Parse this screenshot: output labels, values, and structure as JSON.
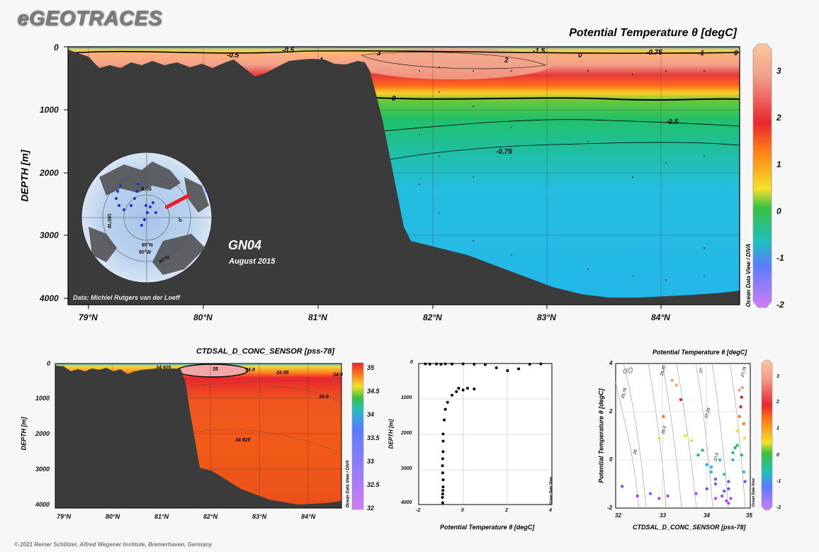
{
  "header": {
    "logo": "eGEOTRACES",
    "main_title": "Potential Temperature θ [degC]"
  },
  "main_section": {
    "ylabel": "DEPTH [m]",
    "yticks": [
      "0",
      "1000",
      "2000",
      "3000",
      "4000"
    ],
    "xticks": [
      "79°N",
      "80°N",
      "81°N",
      "82°N",
      "83°N",
      "84°N"
    ],
    "cruise": "GN04",
    "date": "August 2015",
    "credit": "Data: Michiel Rutgers van der Loeff",
    "dv_label": "Ocean Data View / DIVA",
    "colorbar_ticks": [
      "3",
      "2",
      "1",
      "0",
      "-1",
      "-2"
    ],
    "contour_labels": [
      "0",
      "-0.5",
      "-0.75",
      "1",
      "2",
      "3",
      "-1.5",
      "-0.75",
      "-1",
      "-0.5",
      "-0.5",
      "0",
      "0"
    ],
    "map_labels": [
      "90°E",
      "180°W",
      "0°",
      "85°N",
      "80°N",
      "90°W"
    ]
  },
  "salinity_section": {
    "title": "CTDSAL_D_CONC_SENSOR [pss-78]",
    "ylabel": "DEPTH [m]",
    "yticks": [
      "0",
      "1000",
      "2000",
      "3000",
      "4000"
    ],
    "xticks": [
      "79°N",
      "80°N",
      "81°N",
      "82°N",
      "83°N",
      "84°N"
    ],
    "colorbar_ticks": [
      "35",
      "34.5",
      "34",
      "33.5",
      "33",
      "32.5",
      "32"
    ],
    "contour_labels": [
      "34.925",
      "35",
      "34.9",
      "34.95",
      "34.9",
      "34.9",
      "34.925"
    ],
    "dv_label": "Ocean Data View / DIVA"
  },
  "profile": {
    "xlabel": "Potential Temperature θ [degC]",
    "ylabel": "DEPTH [m]",
    "xticks": [
      "-2",
      "0",
      "2",
      "4"
    ],
    "yticks": [
      "0",
      "1000",
      "2000",
      "3000",
      "4000"
    ],
    "dv_label": "Ocean Data View"
  },
  "ts_plot": {
    "title": "Potential Temperature θ [degC]",
    "xlabel": "CTDSAL_D_CONC_SENSOR [pss-78]",
    "ylabel": "Potential Temperature θ [degC]",
    "xticks": [
      "32",
      "33",
      "34",
      "35"
    ],
    "yticks": [
      "4",
      "2",
      "0",
      "-2"
    ],
    "sigma_label": "σ0",
    "isopycnal_labels": [
      "25.75",
      "26",
      "26.25",
      "26.5",
      "27",
      "27.25",
      "27.5",
      "27.75"
    ],
    "colorbar_ticks": [
      "3",
      "2",
      "1",
      "0",
      "-1",
      "-2"
    ],
    "dv_label": "Ocean Data View"
  },
  "footer": "© 2021 Reiner Schlitzer, Alfred Wegener Institute, Bremerhaven, Germany",
  "chart_data": [
    {
      "type": "heatmap",
      "title": "Potential Temperature θ [degC]",
      "xlabel": "",
      "ylabel": "DEPTH [m]",
      "xlim": [
        78.8,
        84.7
      ],
      "ylim": [
        4000,
        0
      ],
      "colorbar_range": [
        -2,
        3.5
      ],
      "water_column_profile": {
        "depth": [
          0,
          100,
          300,
          500,
          800,
          1000,
          1500,
          2000,
          3000,
          4000
        ],
        "temperature": [
          -1.5,
          1.5,
          2.5,
          1.5,
          0.5,
          0.0,
          -0.5,
          -0.7,
          -0.85,
          -0.9
        ]
      }
    },
    {
      "type": "heatmap",
      "title": "CTDSAL_D_CONC_SENSOR [pss-78]",
      "xlabel": "",
      "ylabel": "DEPTH [m]",
      "xlim": [
        78.8,
        84.7
      ],
      "ylim": [
        4000,
        0
      ],
      "colorbar_range": [
        32,
        35
      ],
      "water_column_profile": {
        "depth": [
          0,
          50,
          200,
          500,
          1000,
          2000,
          3000,
          4000
        ],
        "salinity": [
          32.5,
          34.2,
          34.95,
          34.92,
          34.91,
          34.92,
          34.93,
          34.93
        ]
      }
    },
    {
      "type": "scatter",
      "title": "",
      "xlabel": "Potential Temperature θ [degC]",
      "ylabel": "DEPTH [m]",
      "xlim": [
        -2,
        4
      ],
      "ylim": [
        4000,
        0
      ],
      "x": [
        -1.7,
        -1.5,
        -1.2,
        -1.0,
        -0.8,
        -0.5,
        0.0,
        0.5,
        1.0,
        1.5,
        2.0,
        2.5,
        3.0,
        3.5,
        -0.2,
        0.0,
        0.2,
        0.5,
        -0.3,
        -0.5,
        -0.7,
        -0.8,
        -0.85,
        -0.9,
        -0.9,
        -0.9,
        -0.92,
        -0.93,
        -0.92,
        -0.9,
        -0.9,
        -0.91,
        -0.92,
        -0.93,
        -0.92
      ],
      "y": [
        10,
        15,
        12,
        20,
        10,
        15,
        10,
        20,
        30,
        120,
        200,
        150,
        20,
        10,
        700,
        750,
        700,
        720,
        800,
        900,
        1100,
        1300,
        1600,
        2000,
        2200,
        2500,
        2700,
        2900,
        3100,
        3300,
        3500,
        3600,
        3700,
        3800,
        3950
      ]
    },
    {
      "type": "scatter",
      "title": "Potential Temperature θ [degC]",
      "xlabel": "CTDSAL_D_CONC_SENSOR [pss-78]",
      "ylabel": "Potential Temperature θ [degC]",
      "xlim": [
        32,
        35.1
      ],
      "ylim": [
        -2,
        4
      ],
      "x": [
        32.15,
        32.5,
        32.8,
        33.0,
        33.2,
        33.3,
        33.4,
        33.5,
        33.1,
        33.6,
        33.75,
        33.9,
        34.0,
        34.1,
        34.2,
        34.3,
        34.45,
        34.55,
        34.6,
        34.65,
        34.7,
        34.75,
        34.8,
        34.85,
        34.88,
        34.9,
        34.92,
        34.95,
        34.97,
        34.98,
        33.85,
        34.1,
        34.3,
        34.5,
        34.7,
        34.4,
        34.2,
        33.0,
        34.6,
        34.8,
        34.9,
        34.95,
        34.85,
        34.6,
        34.3,
        34.5
      ],
      "y": [
        -1.1,
        -1.5,
        -1.4,
        -1.6,
        -1.5,
        3.3,
        3.1,
        2.5,
        1.8,
        1.0,
        0.8,
        0.2,
        0.4,
        -0.2,
        -0.5,
        -0.8,
        -1.5,
        -1.7,
        -1.8,
        -1.6,
        0.0,
        0.5,
        1.2,
        1.8,
        2.2,
        2.6,
        3.0,
        1.5,
        0.9,
        -0.9,
        -1.4,
        -1.2,
        -1.0,
        -0.6,
        0.3,
        0.0,
        -0.3,
        0.9,
        -1.2,
        0.6,
        0.2,
        -0.5,
        2.9,
        -0.9,
        -1.6,
        -1.3
      ]
    }
  ],
  "colors": {
    "land": "#3b3b3b",
    "profile_dots": "#000000",
    "ts_palette": [
      "#a050ff",
      "#6060ff",
      "#2db5f0",
      "#20c070",
      "#f5e22a",
      "#ff7a18",
      "#e8262e",
      "#f4a680"
    ]
  }
}
